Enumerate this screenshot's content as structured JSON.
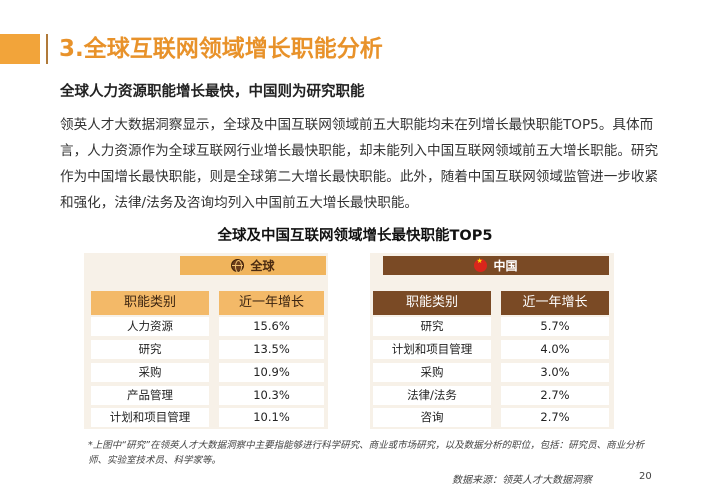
{
  "header": {
    "title": "3.全球互联网领域增长职能分析"
  },
  "subtitle": "全球人力资源职能增长最快，中国则为研究职能",
  "body_text": "领英人才大数据洞察显示，全球及中国互联网领域前五大职能均未在列增长最快职能TOP5。具体而言，人力资源作为全球互联网行业增长最快职能，却未能列入中国互联网领域前五大增长职能。研究作为中国增长最快职能，则是全球第二大增长最快职能。此外，随着中国互联网领域监管进一步收紧和强化，法律/法务及咨询均列入中国前五大增长最快职能。",
  "table": {
    "title": "全球及中国互联网领域增长最快职能TOP5",
    "global": {
      "label": "全球",
      "icon": "globe-icon",
      "col_function": "职能类别",
      "col_growth": "近一年增长",
      "rows": [
        {
          "function": "人力资源",
          "growth": "15.6%"
        },
        {
          "function": "研究",
          "growth": "13.5%"
        },
        {
          "function": "采购",
          "growth": "10.9%"
        },
        {
          "function": "产品管理",
          "growth": "10.3%"
        },
        {
          "function": "计划和项目管理",
          "growth": "10.1%"
        }
      ]
    },
    "china": {
      "label": "中国",
      "icon": "china-flag-icon",
      "col_function": "职能类别",
      "col_growth": "近一年增长",
      "rows": [
        {
          "function": "研究",
          "growth": "5.7%"
        },
        {
          "function": "计划和项目管理",
          "growth": "4.0%"
        },
        {
          "function": "采购",
          "growth": "3.0%"
        },
        {
          "function": "法律/法务",
          "growth": "2.7%"
        },
        {
          "function": "咨询",
          "growth": "2.7%"
        }
      ]
    }
  },
  "footnote": "*上图中“研究”在领英人才大数据洞察中主要指能够进行科学研究、商业或市场研究，以及数据分析的职位，包括：研究员、商业分析师、实验室技术员、科学家等。",
  "source": "数据来源：领英人才大数据洞察",
  "page_number": "20",
  "colors": {
    "accent_orange": "#e8922a",
    "global_header": "#f0b45c",
    "china_header": "#7a4a25",
    "table_background": "#f7f1e8"
  }
}
